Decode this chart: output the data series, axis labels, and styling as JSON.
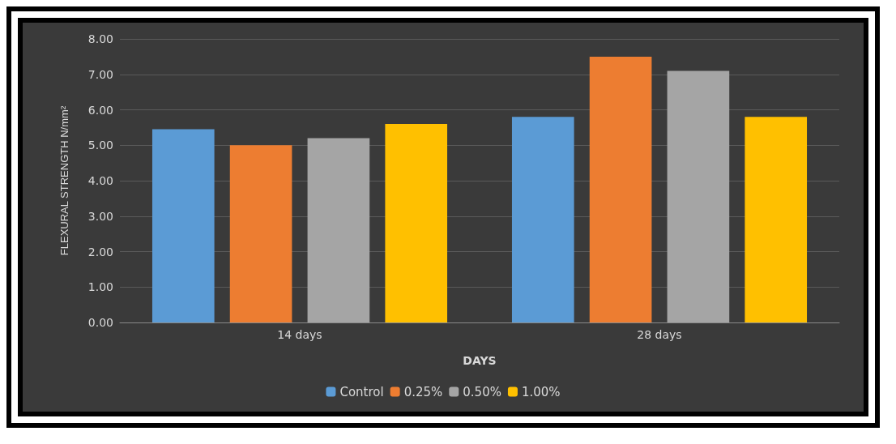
{
  "chart_data": {
    "type": "bar",
    "xlabel": "DAYS",
    "ylabel": "FLEXURAL STRENGTH N/mm²",
    "categories": [
      "14 days",
      "28 days"
    ],
    "series": [
      {
        "name": "Control",
        "color": "#5b9bd5",
        "values": [
          5.45,
          5.8
        ]
      },
      {
        "name": "0.25%",
        "color": "#ed7d31",
        "values": [
          5.0,
          7.5
        ]
      },
      {
        "name": "0.50%",
        "color": "#a5a5a5",
        "values": [
          5.2,
          7.1
        ]
      },
      {
        "name": "1.00%",
        "color": "#ffc000",
        "values": [
          5.6,
          5.8
        ]
      }
    ],
    "ylim": [
      0,
      8
    ],
    "yticks": [
      {
        "value": 0,
        "label": "0.00"
      },
      {
        "value": 1,
        "label": "1.00"
      },
      {
        "value": 2,
        "label": "2.00"
      },
      {
        "value": 3,
        "label": "3.00"
      },
      {
        "value": 4,
        "label": "4.00"
      },
      {
        "value": 5,
        "label": "5.00"
      },
      {
        "value": 6,
        "label": "6.00"
      },
      {
        "value": 7,
        "label": "7.00"
      },
      {
        "value": 8,
        "label": "8.00"
      }
    ],
    "grid": "y",
    "legend": "bottom"
  }
}
